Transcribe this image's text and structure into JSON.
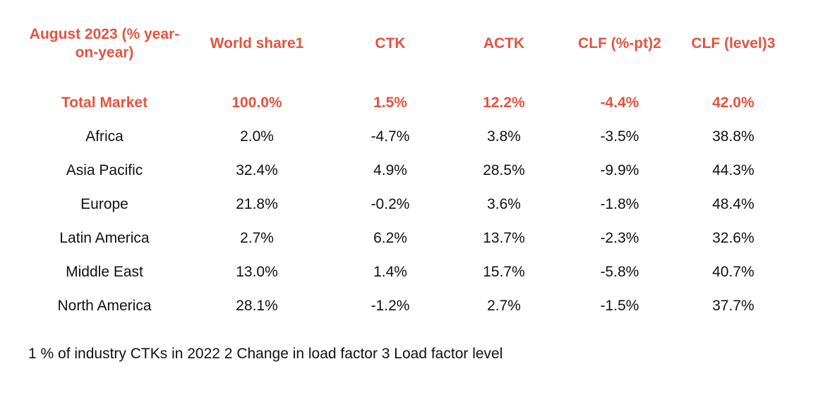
{
  "header": [
    "August 2023 (% year-on-year)",
    "World share1",
    "CTK",
    "ACTK",
    "CLF (%-pt)2",
    "CLF (level)3"
  ],
  "rows": [
    {
      "cells": [
        "Total Market",
        "100.0%",
        "1.5%",
        "12.2%",
        "-4.4%",
        "42.0%"
      ],
      "highlight": true
    },
    {
      "cells": [
        "Africa",
        "2.0%",
        "-4.7%",
        "3.8%",
        "-3.5%",
        "38.8%"
      ]
    },
    {
      "cells": [
        "Asia Pacific",
        "32.4%",
        "4.9%",
        "28.5%",
        "-9.9%",
        "44.3%"
      ]
    },
    {
      "cells": [
        "Europe",
        "21.8%",
        "-0.2%",
        "3.6%",
        "-1.8%",
        "48.4%"
      ]
    },
    {
      "cells": [
        "Latin America",
        "2.7%",
        "6.2%",
        "13.7%",
        "-2.3%",
        "32.6%"
      ]
    },
    {
      "cells": [
        "Middle East",
        "13.0%",
        "1.4%",
        "15.7%",
        "-5.8%",
        "40.7%"
      ]
    },
    {
      "cells": [
        "North America",
        "28.1%",
        "-1.2%",
        "2.7%",
        "-1.5%",
        "37.7%"
      ]
    }
  ],
  "footnote": "1 % of industry CTKs in 2022  2 Change in load factor  3 Load factor level",
  "colors": {
    "accent": "#e4533f",
    "text": "#111111",
    "background": "#ffffff"
  }
}
